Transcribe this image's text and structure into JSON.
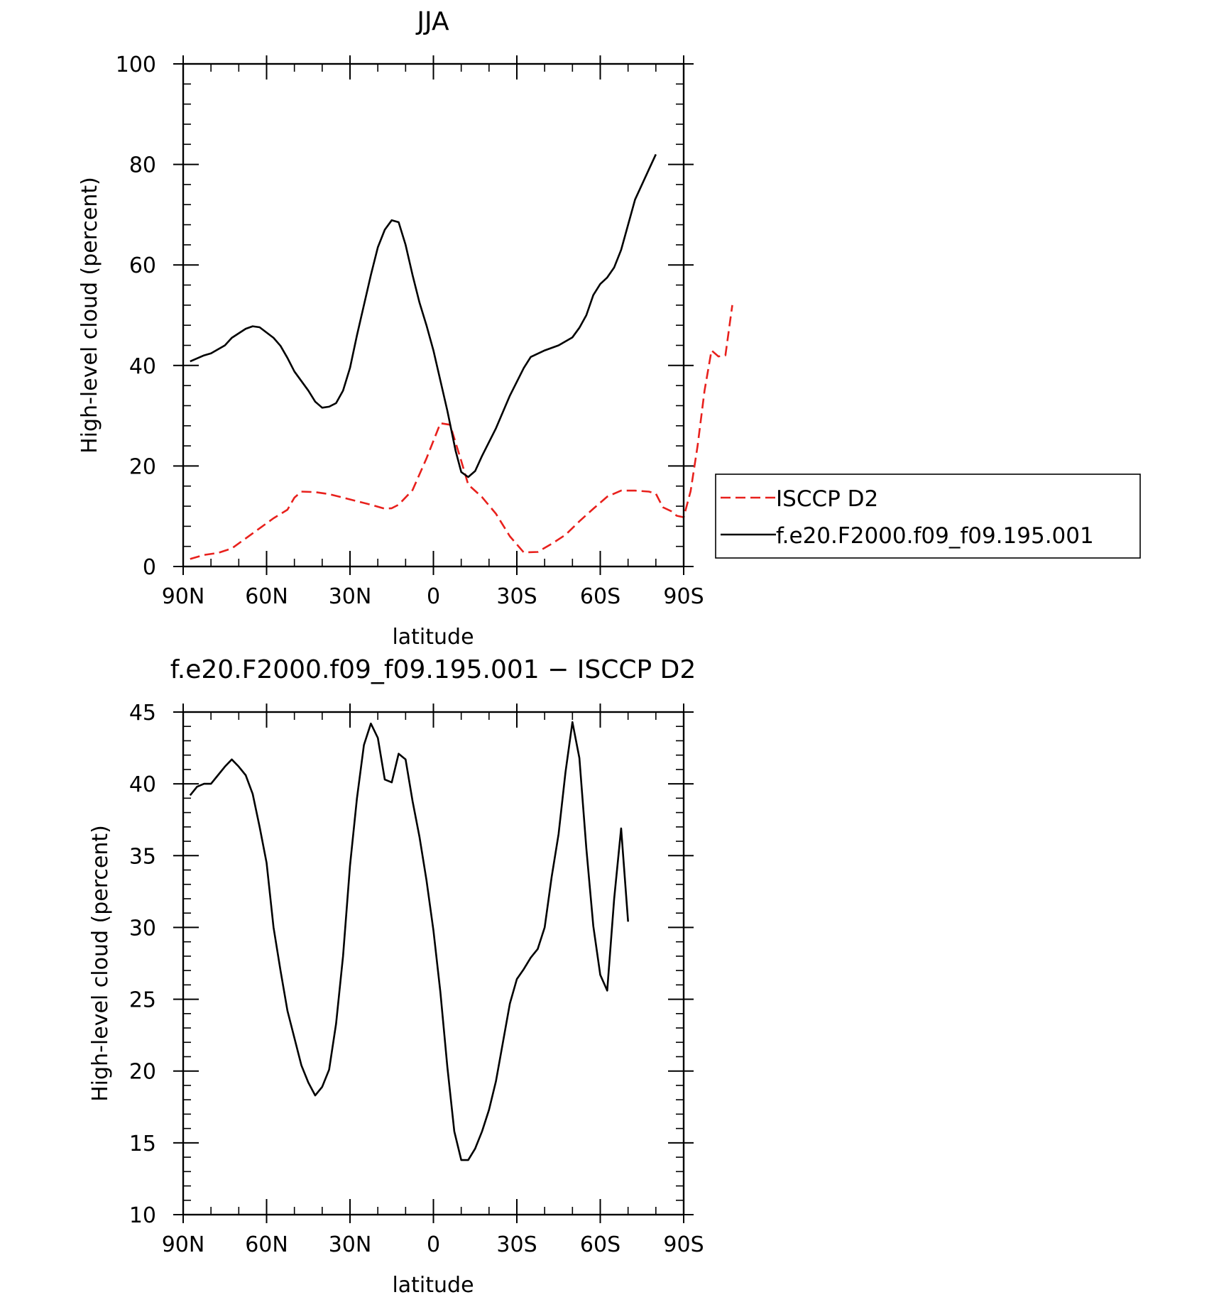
{
  "chart_data": [
    {
      "type": "line",
      "title": "JJA",
      "xlabel": "latitude",
      "ylabel": "High-level cloud (percent)",
      "xlim": [
        -90,
        90
      ],
      "ylim": [
        0,
        100
      ],
      "x_ticks": [
        -90,
        -60,
        -30,
        0,
        30,
        60,
        90
      ],
      "x_tick_labels": [
        "90N",
        "60N",
        "30N",
        "0",
        "30S",
        "60S",
        "90S"
      ],
      "y_ticks": [
        0,
        20,
        40,
        60,
        80,
        100
      ],
      "y_tick_labels": [
        "0",
        "20",
        "40",
        "60",
        "80",
        "100"
      ],
      "legend_position": "right",
      "series": [
        {
          "name": "ISCCP D2",
          "color": "#e8201c",
          "dash": "dashed",
          "points": [
            [
              -87.5,
              1.5
            ],
            [
              -82.5,
              2.3
            ],
            [
              -77.5,
              2.7
            ],
            [
              -72.5,
              3.6
            ],
            [
              -67.5,
              5.6
            ],
            [
              -62.5,
              7.6
            ],
            [
              -57.5,
              9.6
            ],
            [
              -52.5,
              11.3
            ],
            [
              -50.0,
              13.7
            ],
            [
              -47.5,
              14.9
            ],
            [
              -42.5,
              14.8
            ],
            [
              -37.5,
              14.4
            ],
            [
              -32.5,
              13.7
            ],
            [
              -27.5,
              13.0
            ],
            [
              -22.5,
              12.3
            ],
            [
              -17.5,
              11.5
            ],
            [
              -15.0,
              11.6
            ],
            [
              -12.5,
              12.3
            ],
            [
              -7.5,
              15.2
            ],
            [
              -2.5,
              21.5
            ],
            [
              2.5,
              28.5
            ],
            [
              6.0,
              28.2
            ],
            [
              10.0,
              21.0
            ],
            [
              12.5,
              16.3
            ],
            [
              17.5,
              13.8
            ],
            [
              22.5,
              10.5
            ],
            [
              27.5,
              6.0
            ],
            [
              32.5,
              2.8
            ],
            [
              37.5,
              2.9
            ],
            [
              42.5,
              4.5
            ],
            [
              47.5,
              6.3
            ],
            [
              52.5,
              9.0
            ],
            [
              57.5,
              11.5
            ],
            [
              62.5,
              13.9
            ],
            [
              67.5,
              15.1
            ],
            [
              72.5,
              15.1
            ],
            [
              77.5,
              14.9
            ],
            [
              80.0,
              14.5
            ],
            [
              82.5,
              11.8
            ],
            [
              85.5,
              11.0
            ],
            [
              87.5,
              10.1
            ],
            [
              90.0,
              9.8
            ],
            [
              92.5,
              15.0
            ],
            [
              95.0,
              24.0
            ],
            [
              97.5,
              35.0
            ],
            [
              100.0,
              43.0
            ],
            [
              102.5,
              41.8
            ],
            [
              105.0,
              42.0
            ],
            [
              107.5,
              52.0
            ]
          ]
        },
        {
          "name": "f.e20.F2000.f09_f09.195.001",
          "color": "#000000",
          "dash": "solid",
          "points": [
            [
              -87.5,
              40.8
            ],
            [
              -82.5,
              42.0
            ],
            [
              -80.0,
              42.4
            ],
            [
              -75.0,
              44.0
            ],
            [
              -72.5,
              45.5
            ],
            [
              -67.5,
              47.3
            ],
            [
              -65.0,
              47.8
            ],
            [
              -62.5,
              47.6
            ],
            [
              -57.5,
              45.5
            ],
            [
              -55.0,
              43.9
            ],
            [
              -52.5,
              41.5
            ],
            [
              -50.0,
              38.8
            ],
            [
              -45.0,
              35.0
            ],
            [
              -42.5,
              32.8
            ],
            [
              -40.0,
              31.6
            ],
            [
              -37.5,
              31.8
            ],
            [
              -35.0,
              32.5
            ],
            [
              -32.5,
              35.0
            ],
            [
              -30.0,
              39.5
            ],
            [
              -27.5,
              46.0
            ],
            [
              -22.5,
              58.0
            ],
            [
              -20.0,
              63.5
            ],
            [
              -17.5,
              67.0
            ],
            [
              -15.0,
              68.9
            ],
            [
              -12.5,
              68.5
            ],
            [
              -10.0,
              64.0
            ],
            [
              -7.5,
              58.0
            ],
            [
              -5.0,
              52.5
            ],
            [
              -2.5,
              48.0
            ],
            [
              0.0,
              43.0
            ],
            [
              5.0,
              31.0
            ],
            [
              8.0,
              23.0
            ],
            [
              10.0,
              18.8
            ],
            [
              12.5,
              17.8
            ],
            [
              15.0,
              19.0
            ],
            [
              17.5,
              22.0
            ],
            [
              22.5,
              27.5
            ],
            [
              27.5,
              34.0
            ],
            [
              32.5,
              39.5
            ],
            [
              35.0,
              41.7
            ],
            [
              40.0,
              43.0
            ],
            [
              45.0,
              44.0
            ],
            [
              50.0,
              45.6
            ],
            [
              52.5,
              47.5
            ],
            [
              55.0,
              50.0
            ],
            [
              57.5,
              54.0
            ],
            [
              60.0,
              56.2
            ],
            [
              62.5,
              57.5
            ],
            [
              65.0,
              59.5
            ],
            [
              67.5,
              63.0
            ],
            [
              72.5,
              73.0
            ],
            [
              77.5,
              79.0
            ],
            [
              80.0,
              82.0
            ]
          ]
        }
      ]
    },
    {
      "type": "line",
      "title": "f.e20.F2000.f09_f09.195.001 − ISCCP D2",
      "xlabel": "latitude",
      "ylabel": "High-level cloud (percent)",
      "xlim": [
        -90,
        90
      ],
      "ylim": [
        10,
        45
      ],
      "x_ticks": [
        -90,
        -60,
        -30,
        0,
        30,
        60,
        90
      ],
      "x_tick_labels": [
        "90N",
        "60N",
        "30N",
        "0",
        "30S",
        "60S",
        "90S"
      ],
      "y_ticks": [
        10,
        15,
        20,
        25,
        30,
        35,
        40,
        45
      ],
      "y_tick_labels": [
        "10",
        "15",
        "20",
        "25",
        "30",
        "35",
        "40",
        "45"
      ],
      "series": [
        {
          "color": "#000000",
          "dash": "solid",
          "points": [
            [
              -87.5,
              39.2
            ],
            [
              -85.0,
              39.8
            ],
            [
              -82.5,
              40.0
            ],
            [
              -80.0,
              40.0
            ],
            [
              -77.5,
              40.6
            ],
            [
              -75.0,
              41.2
            ],
            [
              -72.5,
              41.7
            ],
            [
              -70.0,
              41.2
            ],
            [
              -67.5,
              40.6
            ],
            [
              -65.0,
              39.3
            ],
            [
              -62.5,
              37.0
            ],
            [
              -60.0,
              34.5
            ],
            [
              -57.5,
              30.0
            ],
            [
              -55.0,
              27.0
            ],
            [
              -52.5,
              24.2
            ],
            [
              -50.0,
              22.3
            ],
            [
              -47.5,
              20.4
            ],
            [
              -45.0,
              19.2
            ],
            [
              -42.5,
              18.3
            ],
            [
              -40.0,
              18.9
            ],
            [
              -37.5,
              20.1
            ],
            [
              -35.0,
              23.3
            ],
            [
              -32.5,
              28.0
            ],
            [
              -30.0,
              34.3
            ],
            [
              -27.5,
              39.0
            ],
            [
              -25.0,
              42.7
            ],
            [
              -22.5,
              44.2
            ],
            [
              -20.0,
              43.2
            ],
            [
              -17.5,
              40.3
            ],
            [
              -15.0,
              40.1
            ],
            [
              -12.5,
              42.1
            ],
            [
              -10.0,
              41.7
            ],
            [
              -7.5,
              38.8
            ],
            [
              -5.0,
              36.3
            ],
            [
              -2.5,
              33.3
            ],
            [
              0.0,
              29.8
            ],
            [
              2.5,
              25.5
            ],
            [
              5.0,
              20.3
            ],
            [
              7.5,
              15.8
            ],
            [
              10.0,
              13.8
            ],
            [
              12.5,
              13.8
            ],
            [
              15.0,
              14.6
            ],
            [
              17.5,
              15.8
            ],
            [
              20.0,
              17.3
            ],
            [
              22.5,
              19.3
            ],
            [
              25.0,
              22.0
            ],
            [
              27.5,
              24.7
            ],
            [
              30.0,
              26.4
            ],
            [
              32.5,
              27.1
            ],
            [
              35.0,
              27.9
            ],
            [
              37.5,
              28.5
            ],
            [
              40.0,
              30.0
            ],
            [
              42.5,
              33.5
            ],
            [
              45.0,
              36.5
            ],
            [
              47.5,
              40.8
            ],
            [
              50.0,
              44.3
            ],
            [
              52.5,
              41.8
            ],
            [
              55.0,
              35.5
            ],
            [
              57.5,
              30.1
            ],
            [
              60.0,
              26.7
            ],
            [
              62.5,
              25.6
            ],
            [
              65.0,
              32.0
            ],
            [
              67.5,
              36.9
            ],
            [
              70.0,
              30.4
            ]
          ]
        }
      ]
    }
  ]
}
